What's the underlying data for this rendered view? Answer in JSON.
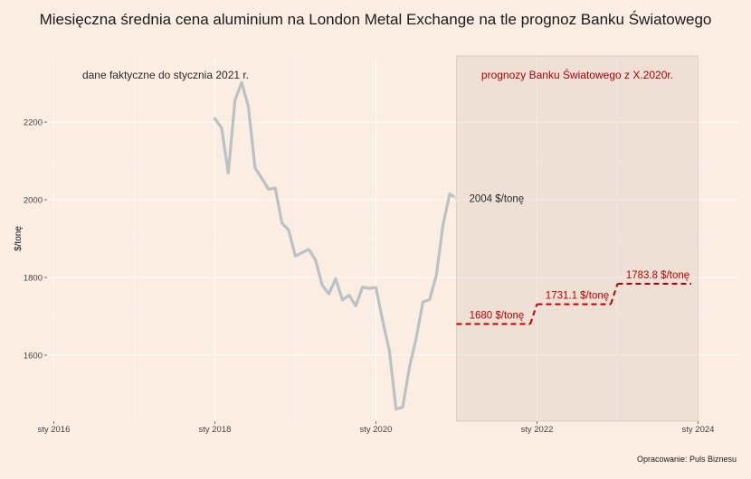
{
  "chart_data": {
    "type": "line",
    "title": "Miesięczna średnia cena aluminium na London Metal Exchange na tle prognoz Banku Światowego",
    "ylabel": "$/tonę",
    "xlabel": "",
    "caption": "Opracowanie: Puls Biznesu",
    "x_range": [
      "2015-12",
      "2024-07"
    ],
    "ylim": [
      1430,
      2370
    ],
    "x_ticks": [
      {
        "date": "2016-01",
        "label": "sty 2016"
      },
      {
        "date": "2018-01",
        "label": "sty 2018"
      },
      {
        "date": "2020-01",
        "label": "sty 2020"
      },
      {
        "date": "2022-01",
        "label": "sty 2022"
      },
      {
        "date": "2024-01",
        "label": "sty 2024"
      }
    ],
    "y_ticks": [
      1600,
      1800,
      2000,
      2200
    ],
    "grid": true,
    "forecast_region": {
      "start": "2021-01",
      "end": "2024-01",
      "label": "prognozy Banku Światowego z X.2020r."
    },
    "actual_label": "dane faktyczne do stycznia 2021 r.",
    "series": [
      {
        "color": "#b9c2c5",
        "points": [
          {
            "x": "2018-01",
            "y": 2209
          },
          {
            "x": "2018-02",
            "y": 2185
          },
          {
            "x": "2018-03",
            "y": 2069
          },
          {
            "x": "2018-04",
            "y": 2256
          },
          {
            "x": "2018-05",
            "y": 2302
          },
          {
            "x": "2018-06",
            "y": 2240
          },
          {
            "x": "2018-07",
            "y": 2082
          },
          {
            "x": "2018-08",
            "y": 2055
          },
          {
            "x": "2018-09",
            "y": 2027
          },
          {
            "x": "2018-10",
            "y": 2030
          },
          {
            "x": "2018-11",
            "y": 1940
          },
          {
            "x": "2018-12",
            "y": 1922
          },
          {
            "x": "2019-01",
            "y": 1855
          },
          {
            "x": "2019-02",
            "y": 1864
          },
          {
            "x": "2019-03",
            "y": 1872
          },
          {
            "x": "2019-04",
            "y": 1845
          },
          {
            "x": "2019-05",
            "y": 1780
          },
          {
            "x": "2019-06",
            "y": 1758
          },
          {
            "x": "2019-07",
            "y": 1797
          },
          {
            "x": "2019-08",
            "y": 1742
          },
          {
            "x": "2019-09",
            "y": 1754
          },
          {
            "x": "2019-10",
            "y": 1727
          },
          {
            "x": "2019-11",
            "y": 1775
          },
          {
            "x": "2019-12",
            "y": 1772
          },
          {
            "x": "2020-01",
            "y": 1774
          },
          {
            "x": "2020-02",
            "y": 1689
          },
          {
            "x": "2020-03",
            "y": 1612
          },
          {
            "x": "2020-04",
            "y": 1461
          },
          {
            "x": "2020-05",
            "y": 1466
          },
          {
            "x": "2020-06",
            "y": 1569
          },
          {
            "x": "2020-07",
            "y": 1644
          },
          {
            "x": "2020-08",
            "y": 1737
          },
          {
            "x": "2020-09",
            "y": 1743
          },
          {
            "x": "2020-10",
            "y": 1805
          },
          {
            "x": "2020-11",
            "y": 1935
          },
          {
            "x": "2020-12",
            "y": 2015
          },
          {
            "x": "2021-01",
            "y": 2004
          }
        ]
      },
      {
        "color": "#c00000",
        "dashed": true,
        "points": [
          {
            "x": "2021-01",
            "y": 1680
          },
          {
            "x": "2021-12",
            "y": 1680
          },
          {
            "x": "2022-01",
            "y": 1731.1
          },
          {
            "x": "2022-12",
            "y": 1731.1
          },
          {
            "x": "2023-01",
            "y": 1783.8
          },
          {
            "x": "2023-12",
            "y": 1783.8
          }
        ]
      }
    ],
    "annotations": [
      {
        "x": "2021-01",
        "y": 2004,
        "text": "2004 $/tonę",
        "color": "#2a2a2a"
      },
      {
        "x": "2021-07",
        "y": 1680,
        "text": "1680 $/tonę",
        "color": "#c00000"
      },
      {
        "x": "2022-07",
        "y": 1731.1,
        "text": "1731.1 $/tonę",
        "color": "#c00000"
      },
      {
        "x": "2023-07",
        "y": 1783.8,
        "text": "1783.8 $/tonę",
        "color": "#c00000"
      }
    ]
  }
}
